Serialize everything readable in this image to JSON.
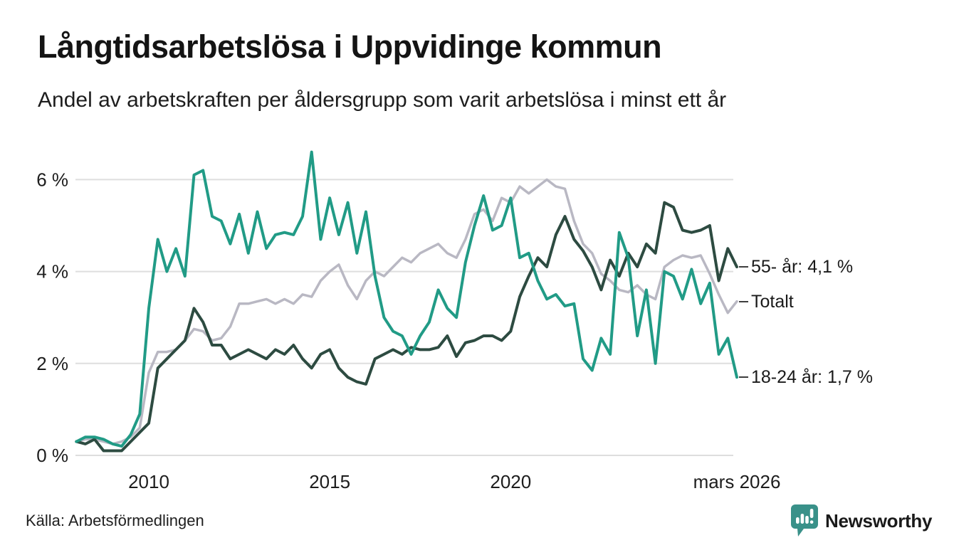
{
  "header": {
    "title": "Långtidsarbetslösa i Uppvidinge kommun",
    "subtitle": "Andel av arbetskraften per åldersgrupp som varit arbetslösa i minst ett år"
  },
  "chart_data": {
    "type": "line",
    "title": "Långtidsarbetslösa i Uppvidinge kommun",
    "subtitle": "Andel av arbetskraften per åldersgrupp som varit arbetslösa i minst ett år",
    "xlabel": "",
    "ylabel": "",
    "grid": "horizontal",
    "xlim": [
      2008.0,
      2026.25
    ],
    "ylim": [
      0,
      6.8
    ],
    "y_ticks": [
      0,
      2,
      4,
      6
    ],
    "y_tick_labels": [
      "0 %",
      "2 %",
      "4 %",
      "6 %"
    ],
    "x_ticks": [
      2010,
      2015,
      2020,
      2026.25
    ],
    "x_tick_labels": [
      "2010",
      "2015",
      "2020",
      "mars 2026"
    ],
    "legend_position": "right-end-labels",
    "x": [
      2008.0,
      2008.25,
      2008.5,
      2008.75,
      2009.0,
      2009.25,
      2009.5,
      2009.75,
      2010.0,
      2010.25,
      2010.5,
      2010.75,
      2011.0,
      2011.25,
      2011.5,
      2011.75,
      2012.0,
      2012.25,
      2012.5,
      2012.75,
      2013.0,
      2013.25,
      2013.5,
      2013.75,
      2014.0,
      2014.25,
      2014.5,
      2014.75,
      2015.0,
      2015.25,
      2015.5,
      2015.75,
      2016.0,
      2016.25,
      2016.5,
      2016.75,
      2017.0,
      2017.25,
      2017.5,
      2017.75,
      2018.0,
      2018.25,
      2018.5,
      2018.75,
      2019.0,
      2019.25,
      2019.5,
      2019.75,
      2020.0,
      2020.25,
      2020.5,
      2020.75,
      2021.0,
      2021.25,
      2021.5,
      2021.75,
      2022.0,
      2022.25,
      2022.5,
      2022.75,
      2023.0,
      2023.25,
      2023.5,
      2023.75,
      2024.0,
      2024.25,
      2024.5,
      2024.75,
      2025.0,
      2025.25,
      2025.5,
      2025.75,
      2026.0,
      2026.25
    ],
    "series": [
      {
        "name": "Totalt",
        "end_label": "Totalt",
        "color": "#b9b8c3",
        "stroke_width": 3.5,
        "values": [
          0.3,
          0.35,
          0.35,
          0.3,
          0.25,
          0.3,
          0.4,
          0.6,
          1.8,
          2.25,
          2.25,
          2.3,
          2.5,
          2.75,
          2.7,
          2.5,
          2.55,
          2.8,
          3.3,
          3.3,
          3.35,
          3.4,
          3.3,
          3.4,
          3.3,
          3.5,
          3.45,
          3.8,
          4.0,
          4.15,
          3.7,
          3.4,
          3.8,
          4.0,
          3.9,
          4.1,
          4.3,
          4.2,
          4.4,
          4.5,
          4.6,
          4.4,
          4.3,
          4.7,
          5.25,
          5.35,
          5.1,
          5.6,
          5.5,
          5.85,
          5.7,
          5.85,
          6.0,
          5.85,
          5.8,
          5.1,
          4.6,
          4.4,
          3.95,
          3.8,
          3.6,
          3.55,
          3.7,
          3.5,
          3.4,
          4.1,
          4.25,
          4.35,
          4.3,
          4.35,
          3.95,
          3.5,
          3.1,
          3.35
        ]
      },
      {
        "name": "55- år",
        "end_label": "55- år: 4,1 %",
        "color": "#2d4b41",
        "stroke_width": 4,
        "values": [
          0.3,
          0.25,
          0.35,
          0.1,
          0.1,
          0.1,
          0.3,
          0.5,
          0.7,
          1.9,
          2.1,
          2.3,
          2.5,
          3.2,
          2.9,
          2.4,
          2.4,
          2.1,
          2.2,
          2.3,
          2.2,
          2.1,
          2.3,
          2.2,
          2.4,
          2.1,
          1.9,
          2.2,
          2.3,
          1.9,
          1.7,
          1.6,
          1.55,
          2.1,
          2.2,
          2.3,
          2.2,
          2.35,
          2.3,
          2.3,
          2.35,
          2.6,
          2.15,
          2.45,
          2.5,
          2.6,
          2.6,
          2.5,
          2.7,
          3.45,
          3.9,
          4.3,
          4.1,
          4.8,
          5.2,
          4.7,
          4.45,
          4.1,
          3.6,
          4.25,
          3.9,
          4.4,
          4.1,
          4.6,
          4.4,
          5.5,
          5.4,
          4.9,
          4.85,
          4.9,
          5.0,
          3.8,
          4.5,
          4.1
        ]
      },
      {
        "name": "18-24 år",
        "end_label": "18-24 år: 1,7 %",
        "color": "#219b86",
        "stroke_width": 4,
        "values": [
          0.3,
          0.4,
          0.4,
          0.35,
          0.25,
          0.2,
          0.45,
          0.9,
          3.2,
          4.7,
          4.0,
          4.5,
          3.9,
          6.1,
          6.2,
          5.2,
          5.1,
          4.6,
          5.25,
          4.4,
          5.3,
          4.5,
          4.8,
          4.85,
          4.8,
          5.2,
          6.6,
          4.7,
          5.6,
          4.8,
          5.5,
          4.4,
          5.3,
          3.9,
          3.0,
          2.7,
          2.6,
          2.2,
          2.6,
          2.9,
          3.6,
          3.2,
          3.0,
          4.2,
          5.0,
          5.65,
          4.9,
          5.0,
          5.6,
          4.3,
          4.4,
          3.8,
          3.4,
          3.5,
          3.25,
          3.3,
          2.1,
          1.85,
          2.55,
          2.2,
          4.85,
          4.3,
          2.6,
          3.6,
          2.0,
          4.0,
          3.9,
          3.4,
          4.05,
          3.3,
          3.75,
          2.2,
          2.55,
          1.7
        ]
      }
    ]
  },
  "footer": {
    "source": "Källa: Arbetsförmedlingen",
    "brand": "Newsworthy"
  },
  "colors": {
    "background": "#ffffff",
    "title_text": "#141414",
    "axis_text": "#1d1d1d",
    "gridline": "#dedede",
    "label_dash": "#3d3d3d",
    "brand_teal": "#399189",
    "series_total": "#b9b8c3",
    "series_55plus": "#2d4b41",
    "series_18_24": "#219b86"
  }
}
